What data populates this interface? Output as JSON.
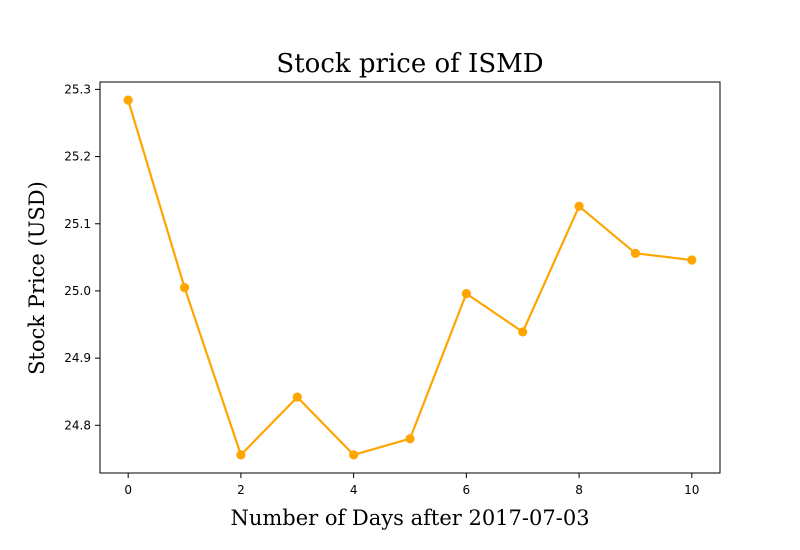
{
  "chart_data": {
    "type": "line",
    "title": "Stock price of ISMD",
    "xlabel": "Number of Days after 2017-07-03",
    "ylabel": "Stock Price (USD)",
    "x": [
      0,
      1,
      2,
      3,
      4,
      5,
      6,
      7,
      8,
      9,
      10
    ],
    "series": [
      {
        "values": [
          25.284,
          25.005,
          24.756,
          24.842,
          24.756,
          24.78,
          24.996,
          24.939,
          25.126,
          25.056,
          25.046
        ]
      }
    ],
    "xlim": [
      -0.5,
      10.5
    ],
    "ylim": [
      24.729,
      25.311
    ],
    "xticks": [
      0,
      2,
      4,
      6,
      8,
      10
    ],
    "xtick_labels": [
      "0",
      "2",
      "4",
      "6",
      "8",
      "10"
    ],
    "yticks": [
      24.8,
      24.9,
      25.0,
      25.1,
      25.2,
      25.3
    ],
    "ytick_labels": [
      "24.8",
      "24.9",
      "25.0",
      "25.1",
      "25.2",
      "25.3"
    ],
    "grid": false,
    "legend": "none",
    "line_color": "#FFA500",
    "marker": "circle"
  }
}
